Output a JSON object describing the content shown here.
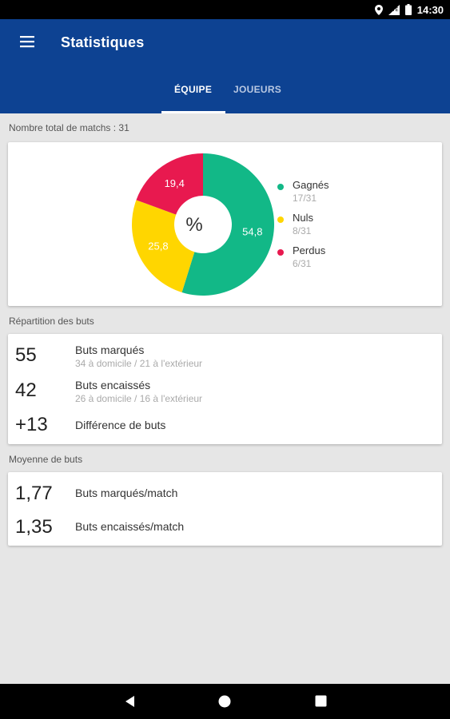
{
  "status_bar": {
    "time": "14:30",
    "icons": [
      "location-icon",
      "signal-icon",
      "battery-icon"
    ]
  },
  "app_bar": {
    "title": "Statistiques",
    "menu_icon": "hamburger-menu-icon",
    "tabs": [
      {
        "label": "ÉQUIPE",
        "active": true
      },
      {
        "label": "JOUEURS",
        "active": false
      }
    ]
  },
  "matches": {
    "total_label": "Nombre total de matchs : 31",
    "center_label": "%",
    "chart_data": {
      "type": "pie",
      "categories": [
        "Gagnés",
        "Nuls",
        "Perdus"
      ],
      "values": [
        54.8,
        25.8,
        19.4
      ],
      "value_labels": [
        "54,8",
        "25,8",
        "19,4"
      ],
      "colors": [
        "#12b887",
        "#ffd600",
        "#e8194f"
      ],
      "counts": [
        "17/31",
        "8/31",
        "6/31"
      ],
      "legend_position": "right"
    }
  },
  "goals": {
    "section_label": "Répartition des buts",
    "rows": [
      {
        "value": "55",
        "label": "Buts marqués",
        "sub": "34 à domicile / 21 à l'extérieur"
      },
      {
        "value": "42",
        "label": "Buts encaissés",
        "sub": "26 à domicile / 16 à l'extérieur"
      },
      {
        "value": "+13",
        "label": "Différence de buts",
        "sub": ""
      }
    ]
  },
  "average": {
    "section_label": "Moyenne de buts",
    "rows": [
      {
        "value": "1,77",
        "label": "Buts marqués/match"
      },
      {
        "value": "1,35",
        "label": "Buts encaissés/match"
      }
    ]
  },
  "nav_bar": {
    "buttons": [
      "back-icon",
      "home-icon",
      "recents-icon"
    ]
  }
}
